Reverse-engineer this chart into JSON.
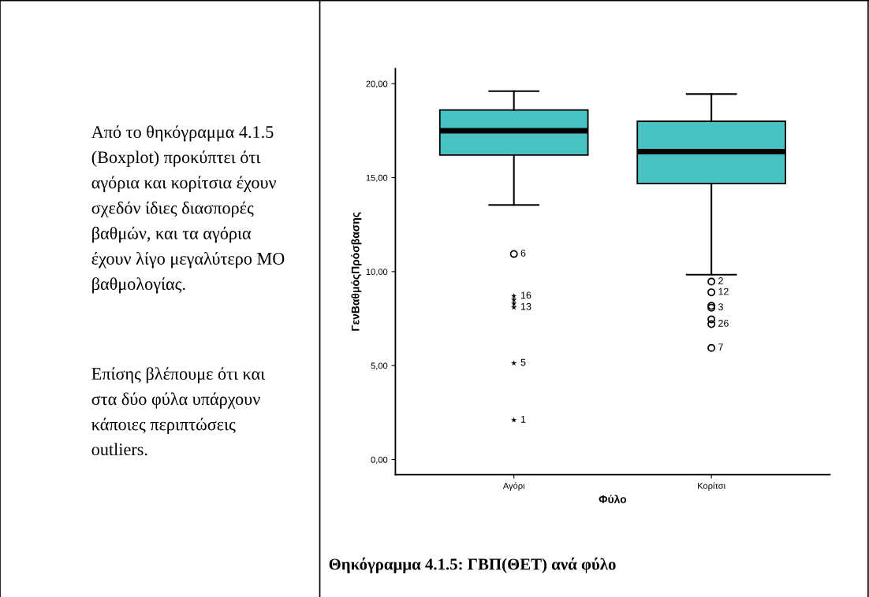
{
  "chart_data": {
    "type": "box",
    "categories": [
      "Αγόρι",
      "Κορίτσι"
    ],
    "xlabel": "Φύλο",
    "ylabel": "ΓενΒαθμόςΠρόσβασης",
    "color": "#48c2c5",
    "boxes": [
      {
        "low": 13.55,
        "q1": 16.2,
        "median": 17.5,
        "q3": 18.6,
        "high": 19.6
      },
      {
        "low": 9.84,
        "q1": 14.68,
        "median": 16.39,
        "q3": 18.0,
        "high": 19.45
      }
    ],
    "series": [
      {
        "type": "scatter",
        "marker": "circle",
        "color": "#000000",
        "x": [
          "Αγόρι",
          "Κορίτσι",
          "Κορίτσι",
          "Κορίτσι",
          "Κορίτσι",
          "Κορίτσι",
          "Κορίτσι",
          "Κορίτσι"
        ],
        "values": [
          10.94,
          9.47,
          8.9,
          8.18,
          8.08,
          7.46,
          7.21,
          5.94
        ]
      },
      {
        "type": "scatter",
        "marker": "star",
        "color": "#000000",
        "x": [
          "Αγόρι",
          "Αγόρι",
          "Αγόρι",
          "Αγόρι",
          "Αγόρι",
          "Αγόρι"
        ],
        "values": [
          8.7,
          8.5,
          8.3,
          8.1,
          5.13,
          2.1
        ]
      }
    ],
    "ylim": [
      -0.8,
      20.8
    ],
    "yticks": [
      {
        "value": 0,
        "label": "0,00"
      },
      {
        "value": 5,
        "label": "5,00"
      },
      {
        "value": 10,
        "label": "10,00"
      },
      {
        "value": 15,
        "label": "15,00"
      },
      {
        "value": 20,
        "label": "20,00"
      }
    ],
    "grid": false,
    "legend": false,
    "annotations": [
      {
        "text": "6",
        "x": "Αγόρι",
        "y": 10.94
      },
      {
        "text": "16",
        "x": "Αγόρι",
        "y": 8.7
      },
      {
        "text": "13",
        "x": "Αγόρι",
        "y": 8.1
      },
      {
        "text": "5",
        "x": "Αγόρι",
        "y": 5.13
      },
      {
        "text": "1",
        "x": "Αγόρι",
        "y": 2.1
      },
      {
        "text": "2",
        "x": "Κορίτσι",
        "y": 9.47
      },
      {
        "text": "12",
        "x": "Κορίτσι",
        "y": 8.9
      },
      {
        "text": "3",
        "x": "Κορίτσι",
        "y": 8.08
      },
      {
        "text": "26",
        "x": "Κορίτσι",
        "y": 7.21
      },
      {
        "text": "7",
        "x": "Κορίτσι",
        "y": 5.94
      },
      "Από το θηκόγραμμα 4.1.5\n(Boxplot) προκύπτει ότι\nαγόρια και κορίτσια έχουν\nσχεδόν ίδιες διασπορές\nβαθμών, και τα αγόρια\nέχουν λίγο μεγαλύτερο ΜΟ\nβαθμολογίας.",
      "Επίσης βλέπουμε ότι και\nστα δύο φύλα υπάρχουν\nκάποιες περιπτώσεις\noutliers.",
      "Θηκόγραμμα 4.1.5: ΓΒΠ(ΘΕΤ) ανά φύλο"
    ]
  }
}
